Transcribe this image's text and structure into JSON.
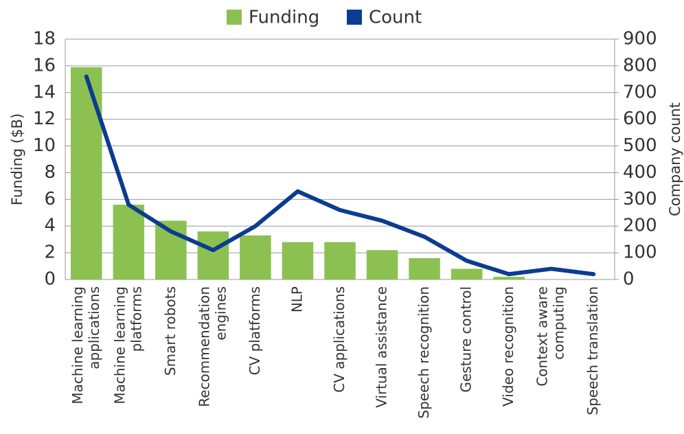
{
  "chart_data": {
    "type": "bar-line",
    "categories": [
      "Machine learning applications",
      "Machine learning platforms",
      "Smart robots",
      "Recommendation engines",
      "CV platforms",
      "NLP",
      "CV applications",
      "Virtual assistance",
      "Speech recognition",
      "Gesture control",
      "Video recognition",
      "Context aware computing",
      "Speech translation"
    ],
    "series": [
      {
        "name": "Funding",
        "type": "bar",
        "color": "#8cc152",
        "values": [
          15.9,
          5.6,
          4.4,
          3.6,
          3.3,
          2.8,
          2.8,
          2.2,
          1.6,
          0.8,
          0.2,
          0,
          0
        ]
      },
      {
        "name": "Count",
        "type": "line",
        "axis": "y2",
        "color": "#0c3c8f",
        "values": [
          760,
          280,
          180,
          110,
          200,
          330,
          260,
          220,
          160,
          70,
          20,
          40,
          20
        ]
      }
    ],
    "ylabel": "Funding ($B)",
    "y2label": "Company count",
    "ylim": [
      0,
      18
    ],
    "yticks": [
      0,
      2,
      4,
      6,
      8,
      10,
      12,
      14,
      16,
      18
    ],
    "y2lim": [
      0,
      900
    ],
    "y2ticks": [
      0,
      100,
      200,
      300,
      400,
      500,
      600,
      700,
      800,
      900
    ],
    "grid": true,
    "legend": "top"
  }
}
